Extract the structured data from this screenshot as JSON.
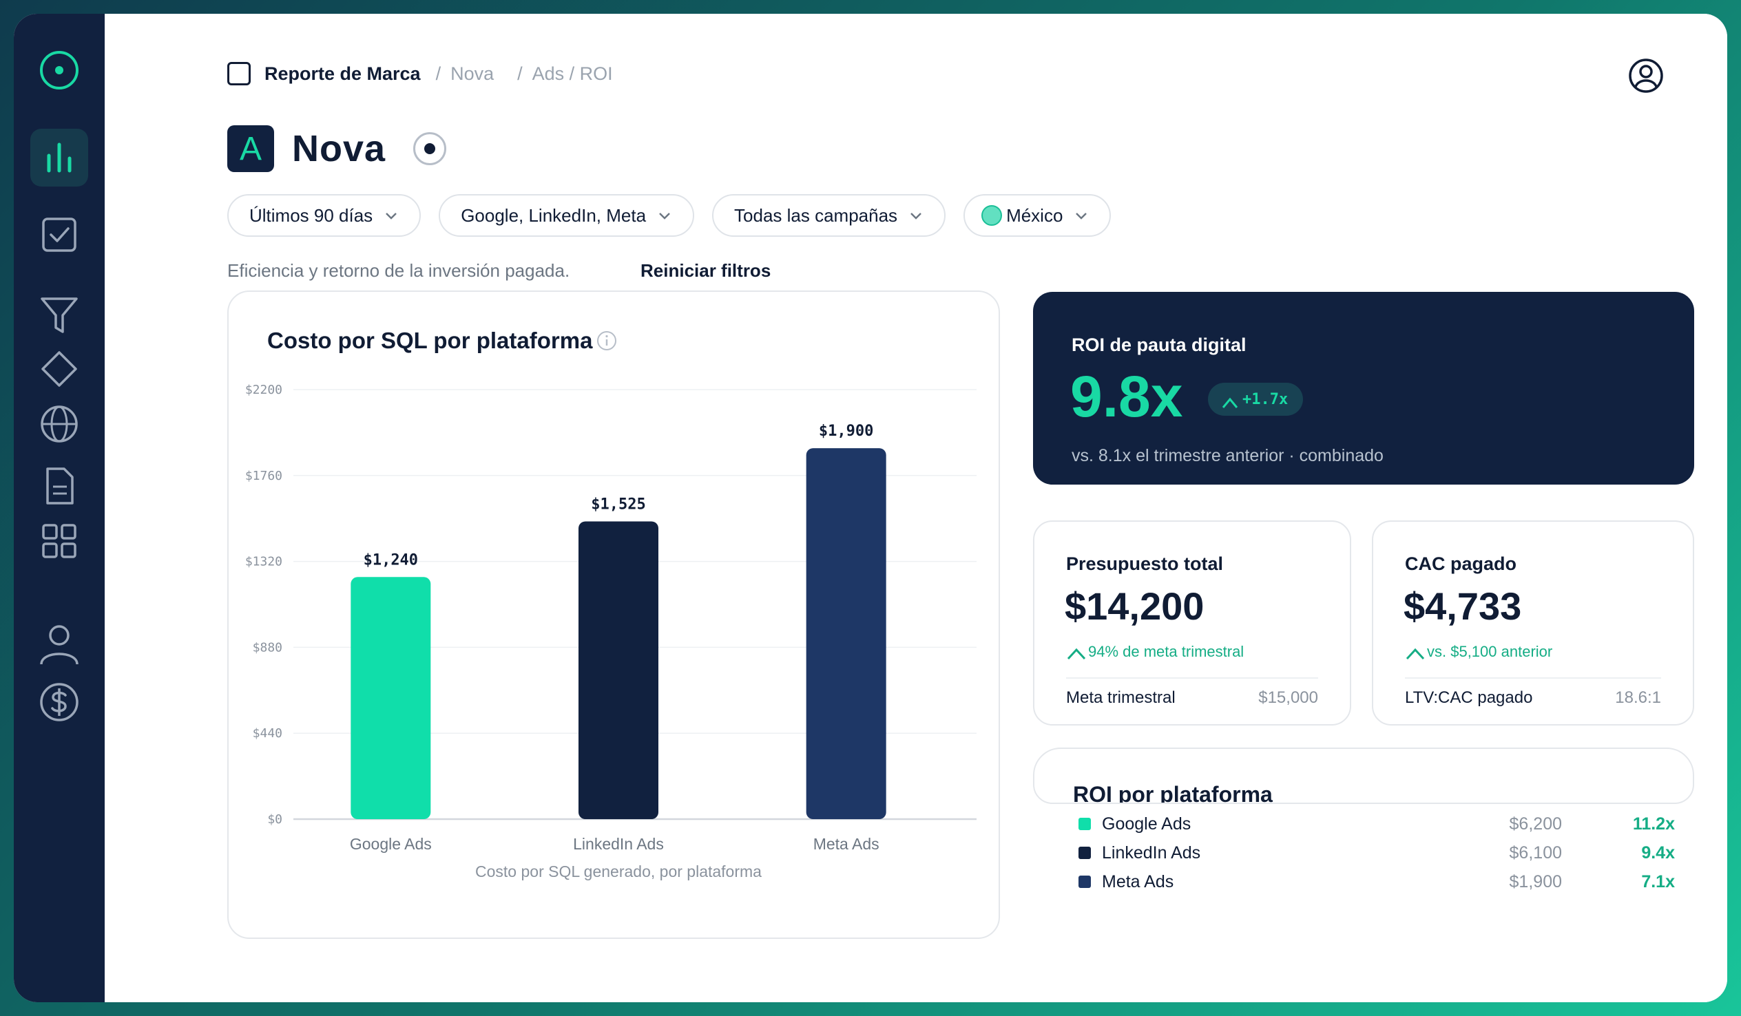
{
  "colors": {
    "navy": "#11213f",
    "accent": "#19d9a4",
    "google": "#10deaa",
    "linkedin": "#11213f",
    "meta": "#1e3766",
    "positive": "#15ad85"
  },
  "sidebar": {
    "logo_icon": "target-icon",
    "items": [
      {
        "icon": "bar-chart-icon",
        "active": true
      },
      {
        "icon": "checkbox-icon"
      },
      {
        "icon": "funnel-icon"
      },
      {
        "icon": "diamond-icon"
      },
      {
        "icon": "globe-icon"
      },
      {
        "icon": "document-icon"
      },
      {
        "icon": "grid-icon"
      },
      {
        "icon": "user-icon"
      },
      {
        "icon": "dollar-icon"
      }
    ]
  },
  "breadcrumb": {
    "root": "Reporte de Marca",
    "sep1": "/",
    "level1": "Nova",
    "sep2": "/",
    "level2": "Ads / ROI"
  },
  "header": {
    "logo_letter": "A",
    "title": "Nova"
  },
  "filters": {
    "period": "Últimos 90 días",
    "platforms": "Google, LinkedIn, Meta",
    "campaigns": "Todas las campañas",
    "country": "México"
  },
  "description": "Eficiencia y retorno de la inversión pagada.",
  "reset_label": "Reiniciar filtros",
  "chart_data": {
    "type": "bar",
    "title": "Costo por SQL por plataforma",
    "xlabel": "Costo por SQL generado, por plataforma",
    "ylabel": "",
    "categories": [
      "Google Ads",
      "LinkedIn Ads",
      "Meta Ads"
    ],
    "values": [
      1240,
      1525,
      1900
    ],
    "value_labels": [
      "$1,240",
      "$1,525",
      "$1,900"
    ],
    "ylim": [
      0,
      2200
    ],
    "yticks": [
      0,
      440,
      880,
      1320,
      1760,
      2200
    ],
    "ytick_labels": [
      "$0",
      "$440",
      "$880",
      "$1320",
      "$1760",
      "$2200"
    ],
    "bar_colors": [
      "#10deaa",
      "#11213f",
      "#1e3766"
    ],
    "grid": true
  },
  "roi": {
    "label": "ROI de pauta digital",
    "value": "9.8x",
    "delta": "+1.7x",
    "sub": "vs. 8.1x el trimestre anterior · combinado"
  },
  "kpis": {
    "budget": {
      "label": "Presupuesto total",
      "value": "$14,200",
      "trend": "94% de meta trimestral",
      "foot_label": "Meta trimestral",
      "foot_value": "$15,000"
    },
    "cac": {
      "label": "CAC pagado",
      "value": "$4,733",
      "trend": "vs. $5,100 anterior",
      "foot_label": "LTV:CAC pagado",
      "foot_value": "18.6:1"
    }
  },
  "platform_roi": {
    "title": "ROI por plataforma",
    "rows": [
      {
        "name": "Google Ads",
        "spend": "$6,200",
        "roi": "11.2x",
        "color": "#10deaa"
      },
      {
        "name": "LinkedIn Ads",
        "spend": "$6,100",
        "roi": "9.4x",
        "color": "#11213f"
      },
      {
        "name": "Meta Ads",
        "spend": "$1,900",
        "roi": "7.1x",
        "color": "#1e3766"
      }
    ]
  }
}
